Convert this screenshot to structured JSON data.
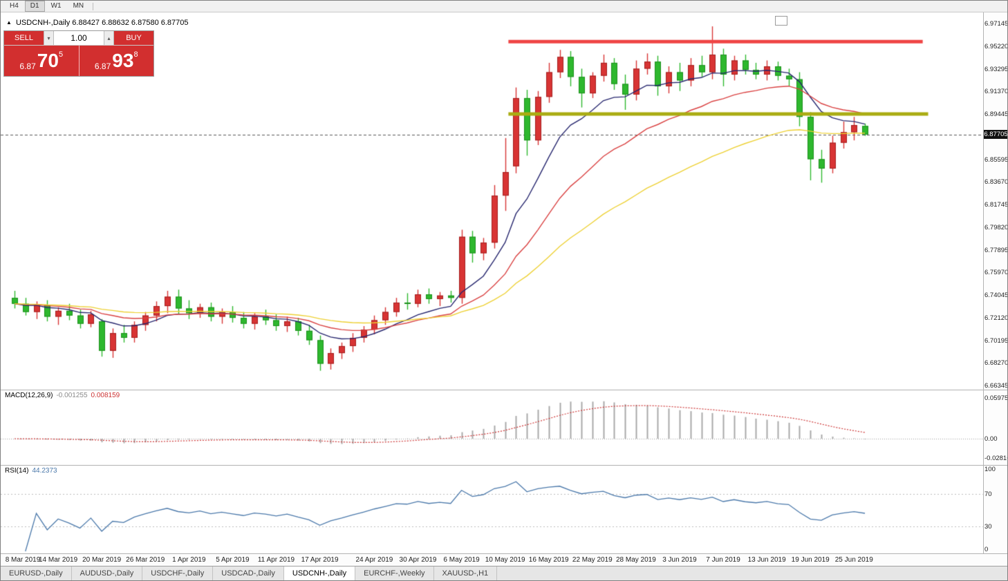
{
  "toolbar": {
    "timeframes": [
      "H4",
      "D1",
      "W1",
      "MN"
    ],
    "active": "D1"
  },
  "icons": {
    "symbol_marker": "▲",
    "volume_dropdown": "▾",
    "volume_step": "▴"
  },
  "chart": {
    "title": {
      "symbol": "USDCNH-,Daily",
      "ohlc": "6.88427 6.88632 6.87580 6.87705"
    },
    "price_axis": {
      "labels": [
        "6.97145",
        "6.95220",
        "6.93295",
        "6.91370",
        "6.89445",
        "6.85595",
        "6.83670",
        "6.81745",
        "6.79820",
        "6.77895",
        "6.75970",
        "6.74045",
        "6.72120",
        "6.70195",
        "6.68270",
        "6.66345"
      ],
      "current_tag": "6.87705"
    },
    "date_axis": [
      {
        "bar": 0,
        "label": "8 Mar 2019"
      },
      {
        "bar": 4,
        "label": "14 Mar 2019"
      },
      {
        "bar": 8,
        "label": "20 Mar 2019"
      },
      {
        "bar": 12,
        "label": "26 Mar 2019"
      },
      {
        "bar": 16,
        "label": "1 Apr 2019"
      },
      {
        "bar": 20,
        "label": "5 Apr 2019"
      },
      {
        "bar": 24,
        "label": "11 Apr 2019"
      },
      {
        "bar": 28,
        "label": "17 Apr 2019"
      },
      {
        "bar": 33,
        "label": "24 Apr 2019"
      },
      {
        "bar": 37,
        "label": "30 Apr 2019"
      },
      {
        "bar": 41,
        "label": "6 May 2019"
      },
      {
        "bar": 45,
        "label": "10 May 2019"
      },
      {
        "bar": 49,
        "label": "16 May 2019"
      },
      {
        "bar": 53,
        "label": "22 May 2019"
      },
      {
        "bar": 57,
        "label": "28 May 2019"
      },
      {
        "bar": 61,
        "label": "3 Jun 2019"
      },
      {
        "bar": 65,
        "label": "7 Jun 2019"
      },
      {
        "bar": 69,
        "label": "13 Jun 2019"
      },
      {
        "bar": 73,
        "label": "19 Jun 2019"
      },
      {
        "bar": 77,
        "label": "25 Jun 2019"
      }
    ]
  },
  "trade": {
    "sell_label": "SELL",
    "buy_label": "BUY",
    "volume": "1.00",
    "sell_price": {
      "base": "6.87",
      "big": "70",
      "sup": "5"
    },
    "buy_price": {
      "base": "6.87",
      "big": "93",
      "sup": "8"
    }
  },
  "indicators": {
    "macd": {
      "name": "MACD(12,26,9)",
      "main_value": "-0.001255",
      "signal_value": "0.008159",
      "scale": [
        "0.059758",
        "0.00",
        "-0.02816"
      ]
    },
    "rsi": {
      "name": "RSI(14)",
      "value": "44.2373",
      "scale": [
        "100",
        "70",
        "30",
        "0"
      ]
    }
  },
  "tabs": [
    {
      "label": "EURUSD-,Daily",
      "active": false
    },
    {
      "label": "AUDUSD-,Daily",
      "active": false
    },
    {
      "label": "USDCHF-,Daily",
      "active": false
    },
    {
      "label": "USDCAD-,Daily",
      "active": false
    },
    {
      "label": "USDCNH-,Daily",
      "active": true
    },
    {
      "label": "EURCHF-,Weekly",
      "active": false
    },
    {
      "label": "XAUUSD-,H1",
      "active": false
    }
  ],
  "chart_data": {
    "type": "candlestick",
    "symbol": "USDCNH",
    "period": "Daily",
    "price_range": [
      6.66345,
      6.97145
    ],
    "colors": {
      "up": "#d83434",
      "up_border": "#a31f1f",
      "down": "#2eb82e",
      "down_border": "#1d8f1d"
    },
    "candles": [
      [
        6.738,
        6.744,
        6.729,
        6.733
      ],
      [
        6.733,
        6.738,
        6.723,
        6.726
      ],
      [
        6.726,
        6.735,
        6.72,
        6.732
      ],
      [
        6.732,
        6.736,
        6.718,
        6.722
      ],
      [
        6.722,
        6.73,
        6.715,
        6.727
      ],
      [
        6.727,
        6.733,
        6.719,
        6.723
      ],
      [
        6.723,
        6.728,
        6.712,
        6.716
      ],
      [
        6.716,
        6.727,
        6.713,
        6.724
      ],
      [
        6.718,
        6.72,
        6.688,
        6.693
      ],
      [
        6.693,
        6.712,
        6.687,
        6.708
      ],
      [
        6.708,
        6.715,
        6.7,
        6.704
      ],
      [
        6.704,
        6.718,
        6.7,
        6.715
      ],
      [
        6.715,
        6.726,
        6.71,
        6.723
      ],
      [
        6.723,
        6.735,
        6.718,
        6.731
      ],
      [
        6.731,
        6.744,
        6.725,
        6.739
      ],
      [
        6.739,
        6.745,
        6.724,
        6.729
      ],
      [
        6.729,
        6.736,
        6.72,
        6.725
      ],
      [
        6.725,
        6.733,
        6.721,
        6.73
      ],
      [
        6.73,
        6.734,
        6.718,
        6.722
      ],
      [
        6.722,
        6.729,
        6.716,
        6.726
      ],
      [
        6.726,
        6.731,
        6.717,
        6.721
      ],
      [
        6.721,
        6.726,
        6.712,
        6.716
      ],
      [
        6.716,
        6.725,
        6.711,
        6.722
      ],
      [
        6.722,
        6.728,
        6.715,
        6.719
      ],
      [
        6.719,
        6.724,
        6.71,
        6.714
      ],
      [
        6.714,
        6.722,
        6.709,
        6.718
      ],
      [
        6.718,
        6.721,
        6.706,
        6.71
      ],
      [
        6.71,
        6.715,
        6.698,
        6.702
      ],
      [
        6.702,
        6.706,
        6.676,
        6.682
      ],
      [
        6.682,
        6.695,
        6.677,
        6.691
      ],
      [
        6.691,
        6.7,
        6.686,
        6.697
      ],
      [
        6.697,
        6.708,
        6.692,
        6.704
      ],
      [
        6.704,
        6.714,
        6.7,
        6.711
      ],
      [
        6.711,
        6.723,
        6.707,
        6.719
      ],
      [
        6.719,
        6.73,
        6.715,
        6.726
      ],
      [
        6.726,
        6.738,
        6.722,
        6.734
      ],
      [
        6.734,
        6.742,
        6.728,
        6.733
      ],
      [
        6.733,
        6.745,
        6.73,
        6.741
      ],
      [
        6.741,
        6.746,
        6.733,
        6.737
      ],
      [
        6.737,
        6.743,
        6.731,
        6.74
      ],
      [
        6.74,
        6.744,
        6.734,
        6.738
      ],
      [
        6.738,
        6.796,
        6.733,
        6.79
      ],
      [
        6.79,
        6.795,
        6.768,
        6.776
      ],
      [
        6.776,
        6.789,
        6.77,
        6.785
      ],
      [
        6.785,
        6.834,
        6.78,
        6.825
      ],
      [
        6.825,
        6.874,
        6.812,
        6.845
      ],
      [
        6.85,
        6.917,
        6.844,
        6.908
      ],
      [
        6.908,
        6.915,
        6.859,
        6.872
      ],
      [
        6.872,
        6.914,
        6.868,
        6.909
      ],
      [
        6.909,
        6.938,
        6.904,
        6.93
      ],
      [
        6.93,
        6.949,
        6.925,
        6.943
      ],
      [
        6.943,
        6.948,
        6.918,
        6.926
      ],
      [
        6.926,
        6.933,
        6.9,
        6.912
      ],
      [
        6.912,
        6.93,
        6.908,
        6.927
      ],
      [
        6.927,
        6.945,
        6.922,
        6.938
      ],
      [
        6.938,
        6.942,
        6.915,
        6.92
      ],
      [
        6.92,
        6.928,
        6.898,
        6.911
      ],
      [
        6.911,
        6.94,
        6.906,
        6.933
      ],
      [
        6.933,
        6.946,
        6.928,
        6.939
      ],
      [
        6.939,
        6.944,
        6.91,
        6.918
      ],
      [
        6.918,
        6.935,
        6.912,
        6.93
      ],
      [
        6.93,
        6.938,
        6.914,
        6.923
      ],
      [
        6.923,
        6.942,
        6.918,
        6.936
      ],
      [
        6.936,
        6.944,
        6.926,
        6.93
      ],
      [
        6.93,
        6.969,
        6.924,
        6.945
      ],
      [
        6.945,
        6.95,
        6.918,
        6.928
      ],
      [
        6.928,
        6.944,
        6.923,
        6.94
      ],
      [
        6.94,
        6.945,
        6.928,
        6.932
      ],
      [
        6.932,
        6.938,
        6.924,
        6.928
      ],
      [
        6.928,
        6.94,
        6.923,
        6.935
      ],
      [
        6.935,
        6.939,
        6.923,
        6.927
      ],
      [
        6.927,
        6.933,
        6.918,
        6.924
      ],
      [
        6.924,
        6.93,
        6.884,
        6.892
      ],
      [
        6.892,
        6.896,
        6.838,
        6.856
      ],
      [
        6.856,
        6.864,
        6.836,
        6.848
      ],
      [
        6.848,
        6.876,
        6.844,
        6.87
      ],
      [
        6.87,
        6.888,
        6.865,
        6.879
      ],
      [
        6.879,
        6.892,
        6.872,
        6.885
      ],
      [
        6.88427,
        6.88632,
        6.8758,
        6.87705
      ]
    ],
    "moving_averages": [
      {
        "period": 9,
        "color": "#26266e"
      },
      {
        "period": 19,
        "color": "#d94040"
      },
      {
        "period": 38,
        "color": "#edd032"
      }
    ],
    "annotations": [
      {
        "name": "resistance-line",
        "price": 6.956,
        "bar_start": 45.3,
        "bar_end": 83.3,
        "color": "#ef4545",
        "width": 5
      },
      {
        "name": "support-line",
        "price": 6.8944,
        "bar_start": 45.3,
        "bar_end": 83.8,
        "color": "#aaac12",
        "width": 5
      }
    ],
    "current_price": 6.87705,
    "macd": {
      "fast": 12,
      "slow": 26,
      "signal": 9,
      "hist_color": "#a9a9a9",
      "signal_color": "#cc3333",
      "current_main": -0.001255,
      "current_signal": 0.008159
    },
    "rsi": {
      "period": 14,
      "color": "#4a78aa",
      "levels": [
        70,
        30
      ],
      "current": 44.2373
    }
  }
}
